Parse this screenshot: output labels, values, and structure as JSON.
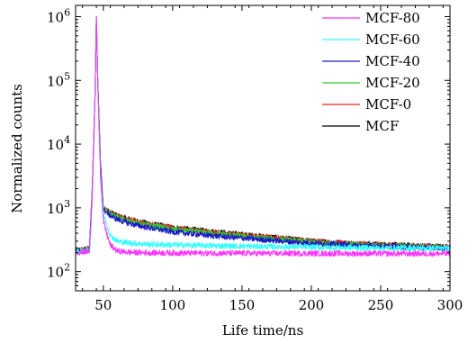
{
  "chart_data": {
    "type": "line",
    "title": "",
    "xlabel": "Life time/ns",
    "ylabel": "Normalized counts",
    "xlim": [
      30,
      300
    ],
    "ylim": [
      50,
      1500000
    ],
    "yscale": "log",
    "x_ticks": [
      {
        "value": 50,
        "label": "50"
      },
      {
        "value": 100,
        "label": "100"
      },
      {
        "value": 150,
        "label": "150"
      },
      {
        "value": 200,
        "label": "200"
      },
      {
        "value": 250,
        "label": "250"
      },
      {
        "value": 300,
        "label": "300"
      }
    ],
    "y_ticks": [
      {
        "value": 100,
        "base": "10",
        "exp": "2"
      },
      {
        "value": 1000,
        "base": "10",
        "exp": "3"
      },
      {
        "value": 10000,
        "base": "10",
        "exp": "4"
      },
      {
        "value": 100000,
        "base": "10",
        "exp": "5"
      },
      {
        "value": 1000000,
        "base": "10",
        "exp": "6"
      }
    ],
    "grid": false,
    "legend_position": "top-right",
    "series": [
      {
        "name": "MCF",
        "color": "#000000",
        "x": [
          30,
          40,
          42,
          44,
          45,
          46,
          48,
          50,
          55,
          60,
          70,
          80,
          100,
          125,
          150,
          175,
          200,
          225,
          250,
          275,
          300
        ],
        "y": [
          215,
          230,
          2000,
          60000,
          1000000,
          100000,
          5000,
          1000,
          850,
          750,
          650,
          580,
          490,
          430,
          380,
          340,
          300,
          280,
          265,
          255,
          245
        ]
      },
      {
        "name": "MCF-0",
        "color": "#e8261f",
        "x": [
          30,
          40,
          42,
          44,
          45,
          46,
          48,
          50,
          55,
          60,
          70,
          80,
          100,
          125,
          150,
          175,
          200,
          225,
          250,
          275,
          300
        ],
        "y": [
          210,
          225,
          1900,
          58000,
          1000000,
          98000,
          4800,
          980,
          830,
          740,
          640,
          570,
          480,
          420,
          375,
          335,
          298,
          278,
          262,
          252,
          242
        ]
      },
      {
        "name": "MCF-20",
        "color": "#33cc33",
        "x": [
          30,
          40,
          42,
          44,
          45,
          46,
          48,
          50,
          55,
          60,
          70,
          80,
          100,
          125,
          150,
          175,
          200,
          225,
          250,
          275,
          300
        ],
        "y": [
          205,
          220,
          1800,
          56000,
          1000000,
          96000,
          4600,
          960,
          800,
          710,
          610,
          545,
          460,
          405,
          360,
          322,
          290,
          270,
          256,
          246,
          236
        ]
      },
      {
        "name": "MCF-40",
        "color": "#1a1acc",
        "x": [
          30,
          40,
          42,
          44,
          45,
          46,
          48,
          50,
          55,
          60,
          70,
          80,
          100,
          125,
          150,
          175,
          200,
          225,
          250,
          275,
          300
        ],
        "y": [
          205,
          215,
          1700,
          55000,
          1000000,
          95000,
          4400,
          940,
          760,
          660,
          560,
          500,
          420,
          370,
          335,
          305,
          280,
          262,
          250,
          240,
          232
        ]
      },
      {
        "name": "MCF-60",
        "color": "#33ffff",
        "x": [
          30,
          40,
          42,
          44,
          45,
          46,
          48,
          50,
          55,
          60,
          70,
          80,
          100,
          125,
          150,
          175,
          200,
          225,
          250,
          275,
          300
        ],
        "y": [
          205,
          210,
          1600,
          54000,
          1000000,
          90000,
          3500,
          800,
          370,
          300,
          280,
          270,
          262,
          256,
          250,
          246,
          242,
          238,
          236,
          234,
          232
        ]
      },
      {
        "name": "MCF-80",
        "color": "#ff33ff",
        "x": [
          30,
          40,
          42,
          44,
          45,
          46,
          48,
          50,
          55,
          60,
          70,
          80,
          100,
          125,
          150,
          175,
          200,
          225,
          250,
          275,
          300
        ],
        "y": [
          200,
          205,
          1500,
          52000,
          1000000,
          85000,
          3000,
          600,
          260,
          210,
          200,
          198,
          196,
          195,
          194,
          193,
          193,
          192,
          192,
          191,
          191
        ]
      }
    ],
    "legend_order": [
      "MCF-80",
      "MCF-60",
      "MCF-40",
      "MCF-20",
      "MCF-0",
      "MCF"
    ]
  }
}
